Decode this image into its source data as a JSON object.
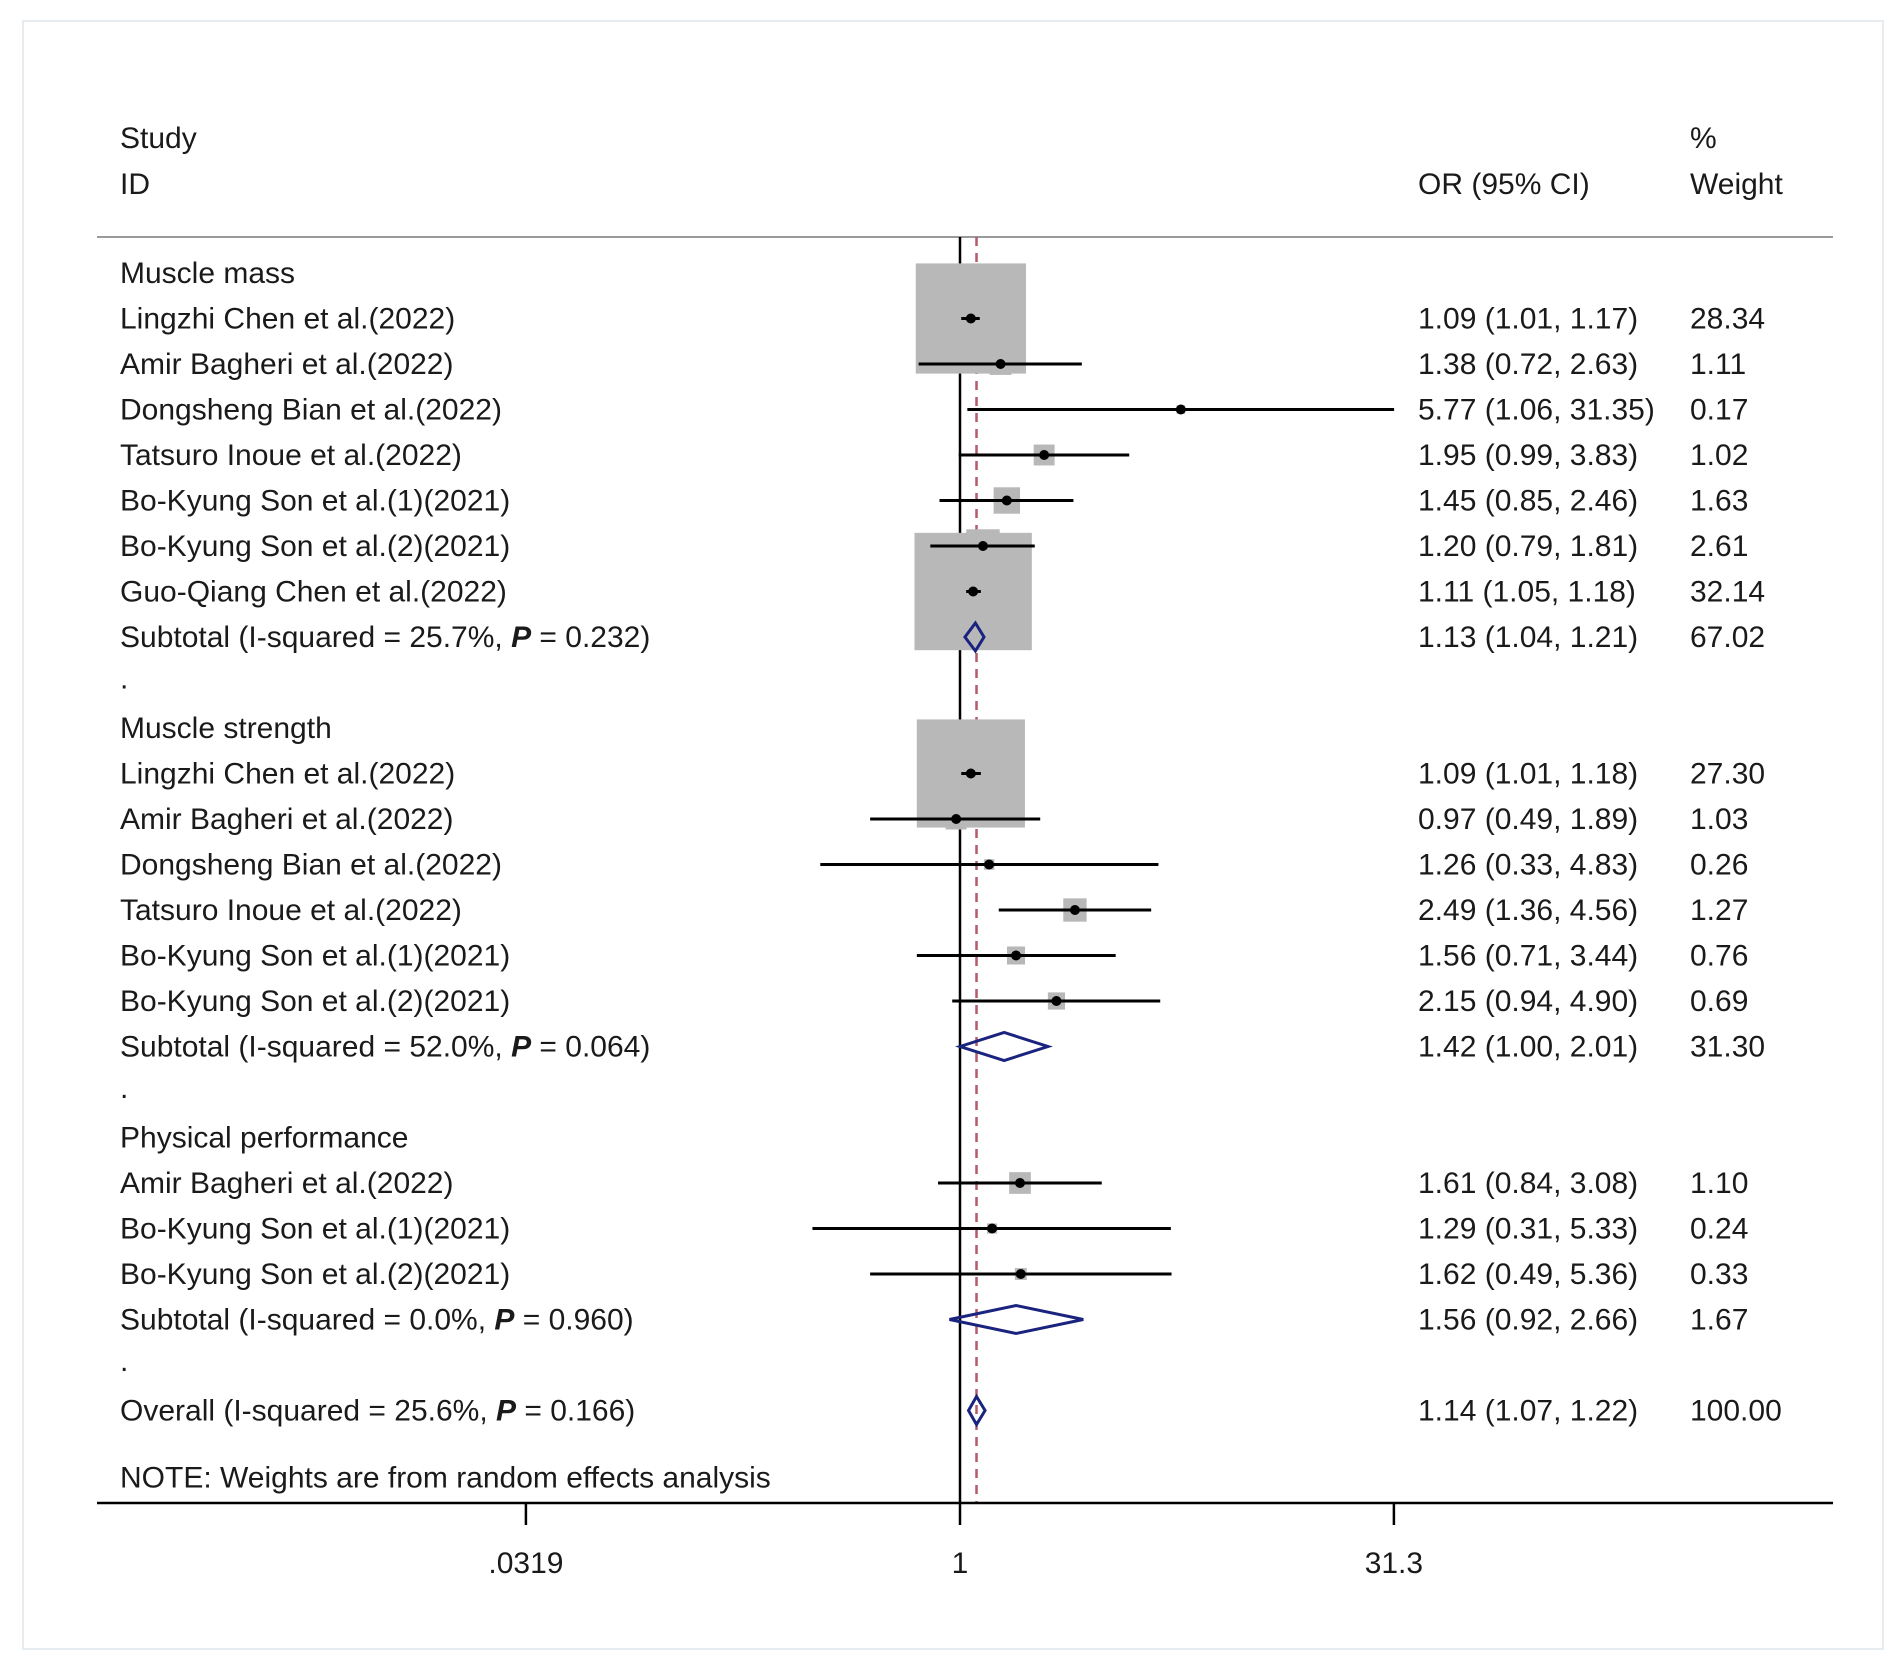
{
  "chart_data": {
    "type": "forest",
    "scale": "log",
    "xlabel": "OR (95% CI)",
    "xticks": [
      {
        "value": 0.0319,
        "label": ".0319"
      },
      {
        "value": 1,
        "label": "1"
      },
      {
        "value": 31.3,
        "label": "31.3"
      }
    ],
    "null_line": 1,
    "overall_line": 1.14,
    "colors": {
      "marker": "#000000",
      "weight_box": "#b8b8b8",
      "diamond": "#1a237e",
      "overall_line": "#b25a6a",
      "text": "#1a1a1a"
    },
    "headers": {
      "study_line1": "Study",
      "study_line2": "ID",
      "or_label": "OR (95% CI)",
      "weight_line1": "%",
      "weight_line2": "Weight"
    },
    "rows": [
      {
        "kind": "group",
        "label": "Muscle mass"
      },
      {
        "kind": "study",
        "label": "Lingzhi Chen et al.(2022)",
        "or": 1.09,
        "lo": 1.01,
        "hi": 1.17,
        "ci_text": "1.09 (1.01, 1.17)",
        "weight": 28.34,
        "weight_text": "28.34"
      },
      {
        "kind": "study",
        "label": "Amir Bagheri et al.(2022)",
        "or": 1.38,
        "lo": 0.72,
        "hi": 2.63,
        "ci_text": "1.38 (0.72, 2.63)",
        "weight": 1.11,
        "weight_text": "1.11"
      },
      {
        "kind": "study",
        "label": "Dongsheng Bian et al.(2022)",
        "or": 5.77,
        "lo": 1.06,
        "hi": 31.35,
        "ci_text": "5.77 (1.06, 31.35)",
        "weight": 0.17,
        "weight_text": "0.17"
      },
      {
        "kind": "study",
        "label": "Tatsuro Inoue et al.(2022)",
        "or": 1.95,
        "lo": 0.99,
        "hi": 3.83,
        "ci_text": "1.95 (0.99, 3.83)",
        "weight": 1.02,
        "weight_text": "1.02"
      },
      {
        "kind": "study",
        "label": "Bo-Kyung Son et al.(1)(2021)",
        "or": 1.45,
        "lo": 0.85,
        "hi": 2.46,
        "ci_text": "1.45 (0.85, 2.46)",
        "weight": 1.63,
        "weight_text": "1.63"
      },
      {
        "kind": "study",
        "label": "Bo-Kyung Son et al.(2)(2021)",
        "or": 1.2,
        "lo": 0.79,
        "hi": 1.81,
        "ci_text": "1.20 (0.79, 1.81)",
        "weight": 2.61,
        "weight_text": "2.61"
      },
      {
        "kind": "study",
        "label": "Guo-Qiang Chen et al.(2022)",
        "or": 1.11,
        "lo": 1.05,
        "hi": 1.18,
        "ci_text": "1.11 (1.05, 1.18)",
        "weight": 32.14,
        "weight_text": "32.14"
      },
      {
        "kind": "subtotal",
        "label_prefix": "Subtotal  (I-squared = 25.7%, ",
        "p_symbol": "P",
        "label_suffix": " = 0.232)",
        "or": 1.13,
        "lo": 1.04,
        "hi": 1.21,
        "ci_text": "1.13 (1.04, 1.21)",
        "weight": 67.02,
        "weight_text": "67.02"
      },
      {
        "kind": "spacer",
        "label": "."
      },
      {
        "kind": "group",
        "label": "Muscle strength"
      },
      {
        "kind": "study",
        "label": "Lingzhi Chen et al.(2022)",
        "or": 1.09,
        "lo": 1.01,
        "hi": 1.18,
        "ci_text": "1.09 (1.01, 1.18)",
        "weight": 27.3,
        "weight_text": "27.30"
      },
      {
        "kind": "study",
        "label": "Amir Bagheri et al.(2022)",
        "or": 0.97,
        "lo": 0.49,
        "hi": 1.89,
        "ci_text": "0.97 (0.49, 1.89)",
        "weight": 1.03,
        "weight_text": "1.03"
      },
      {
        "kind": "study",
        "label": "Dongsheng Bian et al.(2022)",
        "or": 1.26,
        "lo": 0.33,
        "hi": 4.83,
        "ci_text": "1.26 (0.33, 4.83)",
        "weight": 0.26,
        "weight_text": "0.26"
      },
      {
        "kind": "study",
        "label": "Tatsuro Inoue et al.(2022)",
        "or": 2.49,
        "lo": 1.36,
        "hi": 4.56,
        "ci_text": "2.49 (1.36, 4.56)",
        "weight": 1.27,
        "weight_text": "1.27"
      },
      {
        "kind": "study",
        "label": "Bo-Kyung Son et al.(1)(2021)",
        "or": 1.56,
        "lo": 0.71,
        "hi": 3.44,
        "ci_text": "1.56 (0.71, 3.44)",
        "weight": 0.76,
        "weight_text": "0.76"
      },
      {
        "kind": "study",
        "label": "Bo-Kyung Son et al.(2)(2021)",
        "or": 2.15,
        "lo": 0.94,
        "hi": 4.9,
        "ci_text": "2.15 (0.94, 4.90)",
        "weight": 0.69,
        "weight_text": "0.69"
      },
      {
        "kind": "subtotal",
        "label_prefix": "Subtotal  (I-squared = 52.0%, ",
        "p_symbol": "P",
        "label_suffix": " = 0.064)",
        "or": 1.42,
        "lo": 1.0,
        "hi": 2.01,
        "ci_text": "1.42 (1.00, 2.01)",
        "weight": 31.3,
        "weight_text": "31.30"
      },
      {
        "kind": "spacer",
        "label": "."
      },
      {
        "kind": "group",
        "label": "Physical performance"
      },
      {
        "kind": "study",
        "label": "Amir Bagheri et al.(2022)",
        "or": 1.61,
        "lo": 0.84,
        "hi": 3.08,
        "ci_text": "1.61 (0.84, 3.08)",
        "weight": 1.1,
        "weight_text": "1.10"
      },
      {
        "kind": "study",
        "label": "Bo-Kyung Son et al.(1)(2021)",
        "or": 1.29,
        "lo": 0.31,
        "hi": 5.33,
        "ci_text": "1.29 (0.31, 5.33)",
        "weight": 0.24,
        "weight_text": "0.24"
      },
      {
        "kind": "study",
        "label": "Bo-Kyung Son et al.(2)(2021)",
        "or": 1.62,
        "lo": 0.49,
        "hi": 5.36,
        "ci_text": "1.62 (0.49, 5.36)",
        "weight": 0.33,
        "weight_text": "0.33"
      },
      {
        "kind": "subtotal",
        "label_prefix": "Subtotal  (I-squared = 0.0%, ",
        "p_symbol": "P",
        "label_suffix": " = 0.960)",
        "or": 1.56,
        "lo": 0.92,
        "hi": 2.66,
        "ci_text": "1.56 (0.92, 2.66)",
        "weight": 1.67,
        "weight_text": "1.67"
      },
      {
        "kind": "spacer",
        "label": "."
      },
      {
        "kind": "overall",
        "label_prefix": "Overall  (I-squared = 25.6%, ",
        "p_symbol": "P",
        "label_suffix": " = 0.166)",
        "or": 1.14,
        "lo": 1.07,
        "hi": 1.22,
        "ci_text": "1.14 (1.07, 1.22)",
        "weight": 100.0,
        "weight_text": "100.00"
      }
    ],
    "note": "NOTE: Weights are from random effects analysis"
  }
}
